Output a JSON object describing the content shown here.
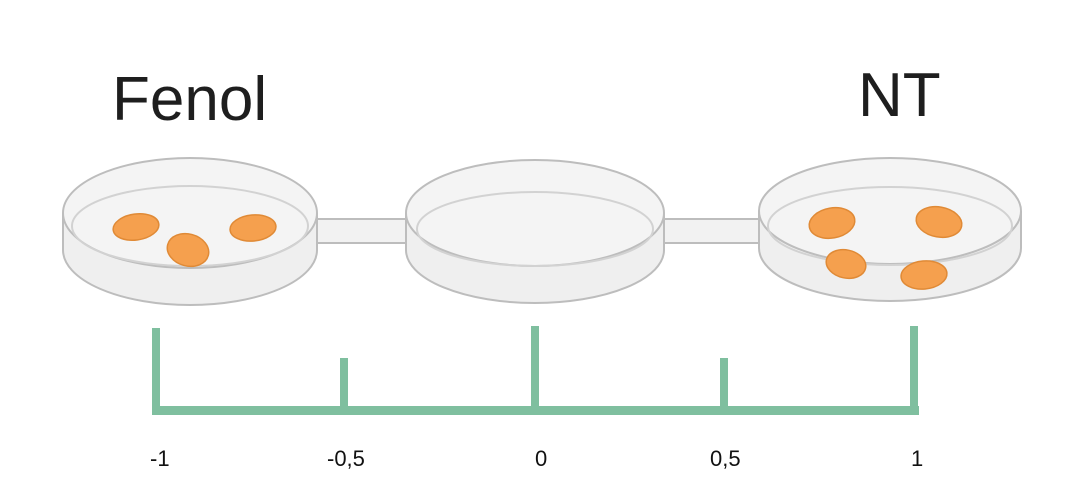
{
  "dishes": [
    {
      "name": "left-dish",
      "label": "Fenol",
      "larvae_count": 3
    },
    {
      "name": "center-dish",
      "label": "",
      "larvae_count": 0
    },
    {
      "name": "right-dish",
      "label": "NT",
      "larvae_count": 4
    }
  ],
  "scale": {
    "ticks": [
      "-1",
      "-0,5",
      "0",
      "0,5",
      "1"
    ],
    "values": [
      -1,
      -0.5,
      0,
      0.5,
      1
    ]
  },
  "colors": {
    "scale": "#7fbf9f",
    "larva": "#f5a04e",
    "larva_edge": "#e08a36",
    "dish_stroke": "#bdbdbd",
    "dish_fill": "#efefef"
  }
}
